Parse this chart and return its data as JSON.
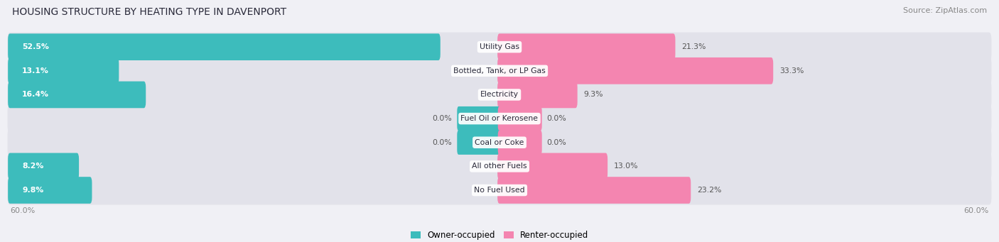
{
  "title": "HOUSING STRUCTURE BY HEATING TYPE IN DAVENPORT",
  "source": "Source: ZipAtlas.com",
  "categories": [
    "Utility Gas",
    "Bottled, Tank, or LP Gas",
    "Electricity",
    "Fuel Oil or Kerosene",
    "Coal or Coke",
    "All other Fuels",
    "No Fuel Used"
  ],
  "owner_values": [
    52.5,
    13.1,
    16.4,
    0.0,
    0.0,
    8.2,
    9.8
  ],
  "renter_values": [
    21.3,
    33.3,
    9.3,
    0.0,
    0.0,
    13.0,
    23.2
  ],
  "owner_color": "#3dbcbc",
  "renter_color": "#f485b0",
  "axis_max": 60.0,
  "axis_label_left": "60.0%",
  "axis_label_right": "60.0%",
  "background_color": "#f0f0f5",
  "bar_background": "#e2e2ea",
  "title_fontsize": 10,
  "source_fontsize": 8,
  "legend_owner": "Owner-occupied",
  "legend_renter": "Renter-occupied"
}
